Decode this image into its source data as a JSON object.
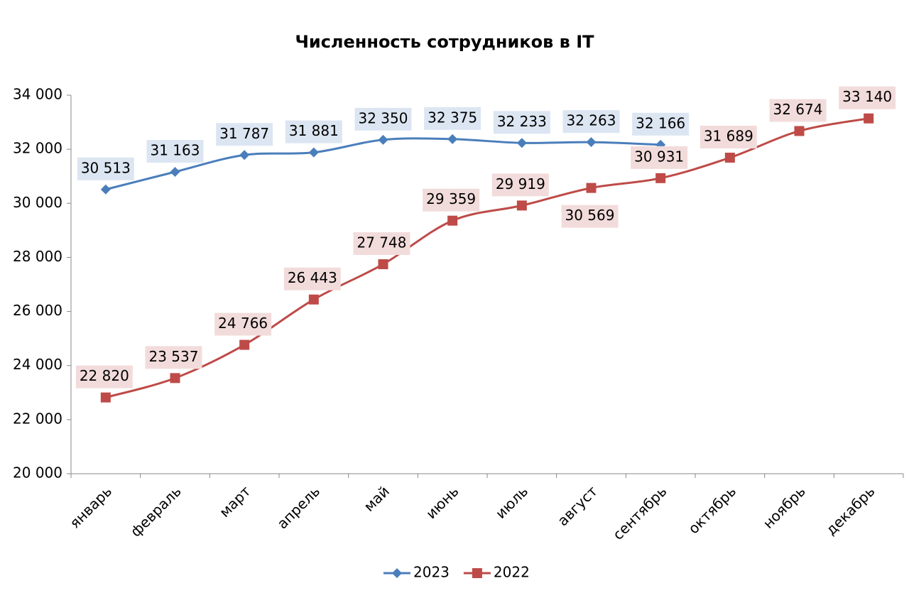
{
  "chart_data": {
    "type": "line",
    "title": "Численность сотрудников в IT",
    "categories": [
      "январь",
      "февраль",
      "март",
      "апрель",
      "май",
      "июнь",
      "июль",
      "август",
      "сентябрь",
      "октябрь",
      "ноябрь",
      "декабрь"
    ],
    "series": [
      {
        "name": "2023",
        "color": "#4a7ebb",
        "marker": "diamond",
        "values": [
          30513,
          31163,
          31787,
          31881,
          32350,
          32375,
          32233,
          32263,
          32166,
          null,
          null,
          null
        ],
        "value_labels": [
          "30 513",
          "31 163",
          "31 787",
          "31 881",
          "32 350",
          "32 375",
          "32 233",
          "32 263",
          "32 166",
          null,
          null,
          null
        ]
      },
      {
        "name": "2022",
        "color": "#be4b48",
        "marker": "square",
        "values": [
          22820,
          23537,
          24766,
          26443,
          27748,
          29359,
          29919,
          30569,
          30931,
          31689,
          32674,
          33140
        ],
        "value_labels": [
          "22 820",
          "23 537",
          "24 766",
          "26 443",
          "27 748",
          "29 359",
          "29 919",
          "30 569",
          "30 931",
          "31 689",
          "32 674",
          "33 140"
        ]
      }
    ],
    "ylim": [
      20000,
      34000
    ],
    "yticks": [
      {
        "value": 20000,
        "label": "20 000"
      },
      {
        "value": 22000,
        "label": "22 000"
      },
      {
        "value": 24000,
        "label": "24 000"
      },
      {
        "value": 26000,
        "label": "26 000"
      },
      {
        "value": 28000,
        "label": "28 000"
      },
      {
        "value": 30000,
        "label": "30 000"
      },
      {
        "value": 32000,
        "label": "32 000"
      },
      {
        "value": 34000,
        "label": "34 000"
      }
    ],
    "grid": false,
    "smooth": true,
    "legend": "bottom"
  }
}
